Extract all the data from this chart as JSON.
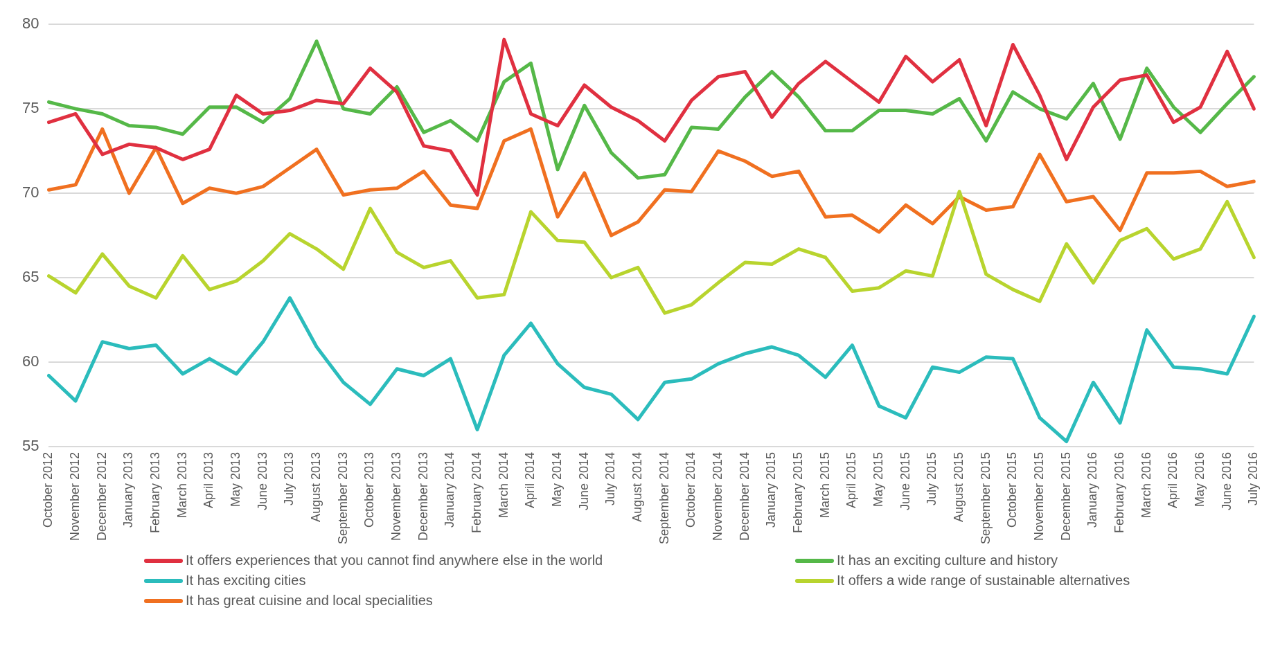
{
  "chart_data": {
    "type": "line",
    "categories": [
      "October 2012",
      "November 2012",
      "December 2012",
      "January 2013",
      "February 2013",
      "March 2013",
      "April 2013",
      "May 2013",
      "June 2013",
      "July 2013",
      "August 2013",
      "September 2013",
      "October 2013",
      "November 2013",
      "December 2013",
      "January 2014",
      "February 2014",
      "March 2014",
      "April 2014",
      "May 2014",
      "June 2014",
      "July 2014",
      "August 2014",
      "September 2014",
      "October 2014",
      "November 2014",
      "December 2014",
      "January 2015",
      "February 2015",
      "March 2015",
      "April 2015",
      "May 2015",
      "June 2015",
      "July 2015",
      "August 2015",
      "September 2015",
      "October 2015",
      "November 2015",
      "December 2015",
      "January 2016",
      "February 2016",
      "March 2016",
      "April 2016",
      "May 2016",
      "June 2016",
      "July 2016"
    ],
    "series": [
      {
        "name": "It offers experiences that you cannot find anywhere else in the world",
        "color": "#e03040",
        "values": [
          74.2,
          74.7,
          72.3,
          72.9,
          72.7,
          72.0,
          72.6,
          75.8,
          74.7,
          74.9,
          75.5,
          75.3,
          77.4,
          76.0,
          72.8,
          72.5,
          69.9,
          79.1,
          74.7,
          74.0,
          76.4,
          75.1,
          74.3,
          73.1,
          75.5,
          76.9,
          77.2,
          74.5,
          76.5,
          77.8,
          76.6,
          75.4,
          78.1,
          76.6,
          77.9,
          74.0,
          78.8,
          75.8,
          72.0,
          75.1,
          76.7,
          77.0,
          74.2,
          75.1,
          78.4,
          75.0
        ]
      },
      {
        "name": "It has an exciting culture and history",
        "color": "#55b848",
        "values": [
          75.4,
          75.0,
          74.7,
          74.0,
          73.9,
          73.5,
          75.1,
          75.1,
          74.2,
          75.6,
          79.0,
          75.0,
          74.7,
          76.3,
          73.6,
          74.3,
          73.1,
          76.6,
          77.7,
          71.4,
          75.2,
          72.4,
          70.9,
          71.1,
          73.9,
          73.8,
          75.7,
          77.2,
          75.7,
          73.7,
          73.7,
          74.9,
          74.9,
          74.7,
          75.6,
          73.1,
          76.0,
          75.0,
          74.4,
          76.5,
          73.2,
          77.4,
          75.1,
          73.6,
          75.3,
          76.9
        ]
      },
      {
        "name": "It has exciting cities",
        "color": "#2bbcbc",
        "values": [
          59.2,
          57.7,
          61.2,
          60.8,
          61.0,
          59.3,
          60.2,
          59.3,
          61.2,
          63.8,
          60.9,
          58.8,
          57.5,
          59.6,
          59.2,
          60.2,
          56.0,
          60.4,
          62.3,
          59.9,
          58.5,
          58.1,
          56.6,
          58.8,
          59.0,
          59.9,
          60.5,
          60.9,
          60.4,
          59.1,
          61.0,
          57.4,
          56.7,
          59.7,
          59.4,
          60.3,
          60.2,
          56.7,
          55.3,
          58.8,
          56.4,
          61.9,
          59.7,
          59.6,
          59.3,
          62.7
        ]
      },
      {
        "name": "It offers a wide range of sustainable alternatives",
        "color": "#b8d42e",
        "values": [
          65.1,
          64.1,
          66.4,
          64.5,
          63.8,
          66.3,
          64.3,
          64.8,
          66.0,
          67.6,
          66.7,
          65.5,
          69.1,
          66.5,
          65.6,
          66.0,
          63.8,
          64.0,
          68.9,
          67.2,
          67.1,
          65.0,
          65.6,
          62.9,
          63.4,
          64.7,
          65.9,
          65.8,
          66.7,
          66.2,
          64.2,
          64.4,
          65.4,
          65.1,
          70.1,
          65.2,
          64.3,
          63.6,
          67.0,
          64.7,
          67.2,
          67.9,
          66.1,
          66.7,
          69.5,
          66.2
        ]
      },
      {
        "name": "It has great cuisine and local specialities",
        "color": "#f07020",
        "values": [
          70.2,
          70.5,
          73.8,
          70.0,
          72.7,
          69.4,
          70.3,
          70.0,
          70.4,
          71.5,
          72.6,
          69.9,
          70.2,
          70.3,
          71.3,
          69.3,
          69.1,
          73.1,
          73.8,
          68.6,
          71.2,
          67.5,
          68.3,
          70.2,
          70.1,
          72.5,
          71.9,
          71.0,
          71.3,
          68.6,
          68.7,
          67.7,
          69.3,
          68.2,
          69.8,
          69.0,
          69.2,
          72.3,
          69.5,
          69.8,
          67.8,
          71.2,
          71.2,
          71.3,
          70.4,
          70.7
        ]
      }
    ],
    "ylim": [
      55,
      80
    ],
    "yticks": [
      55,
      60,
      65,
      70,
      75,
      80
    ],
    "grid": "y",
    "legend": "bottom",
    "marker": "none",
    "line_style": "solid"
  }
}
